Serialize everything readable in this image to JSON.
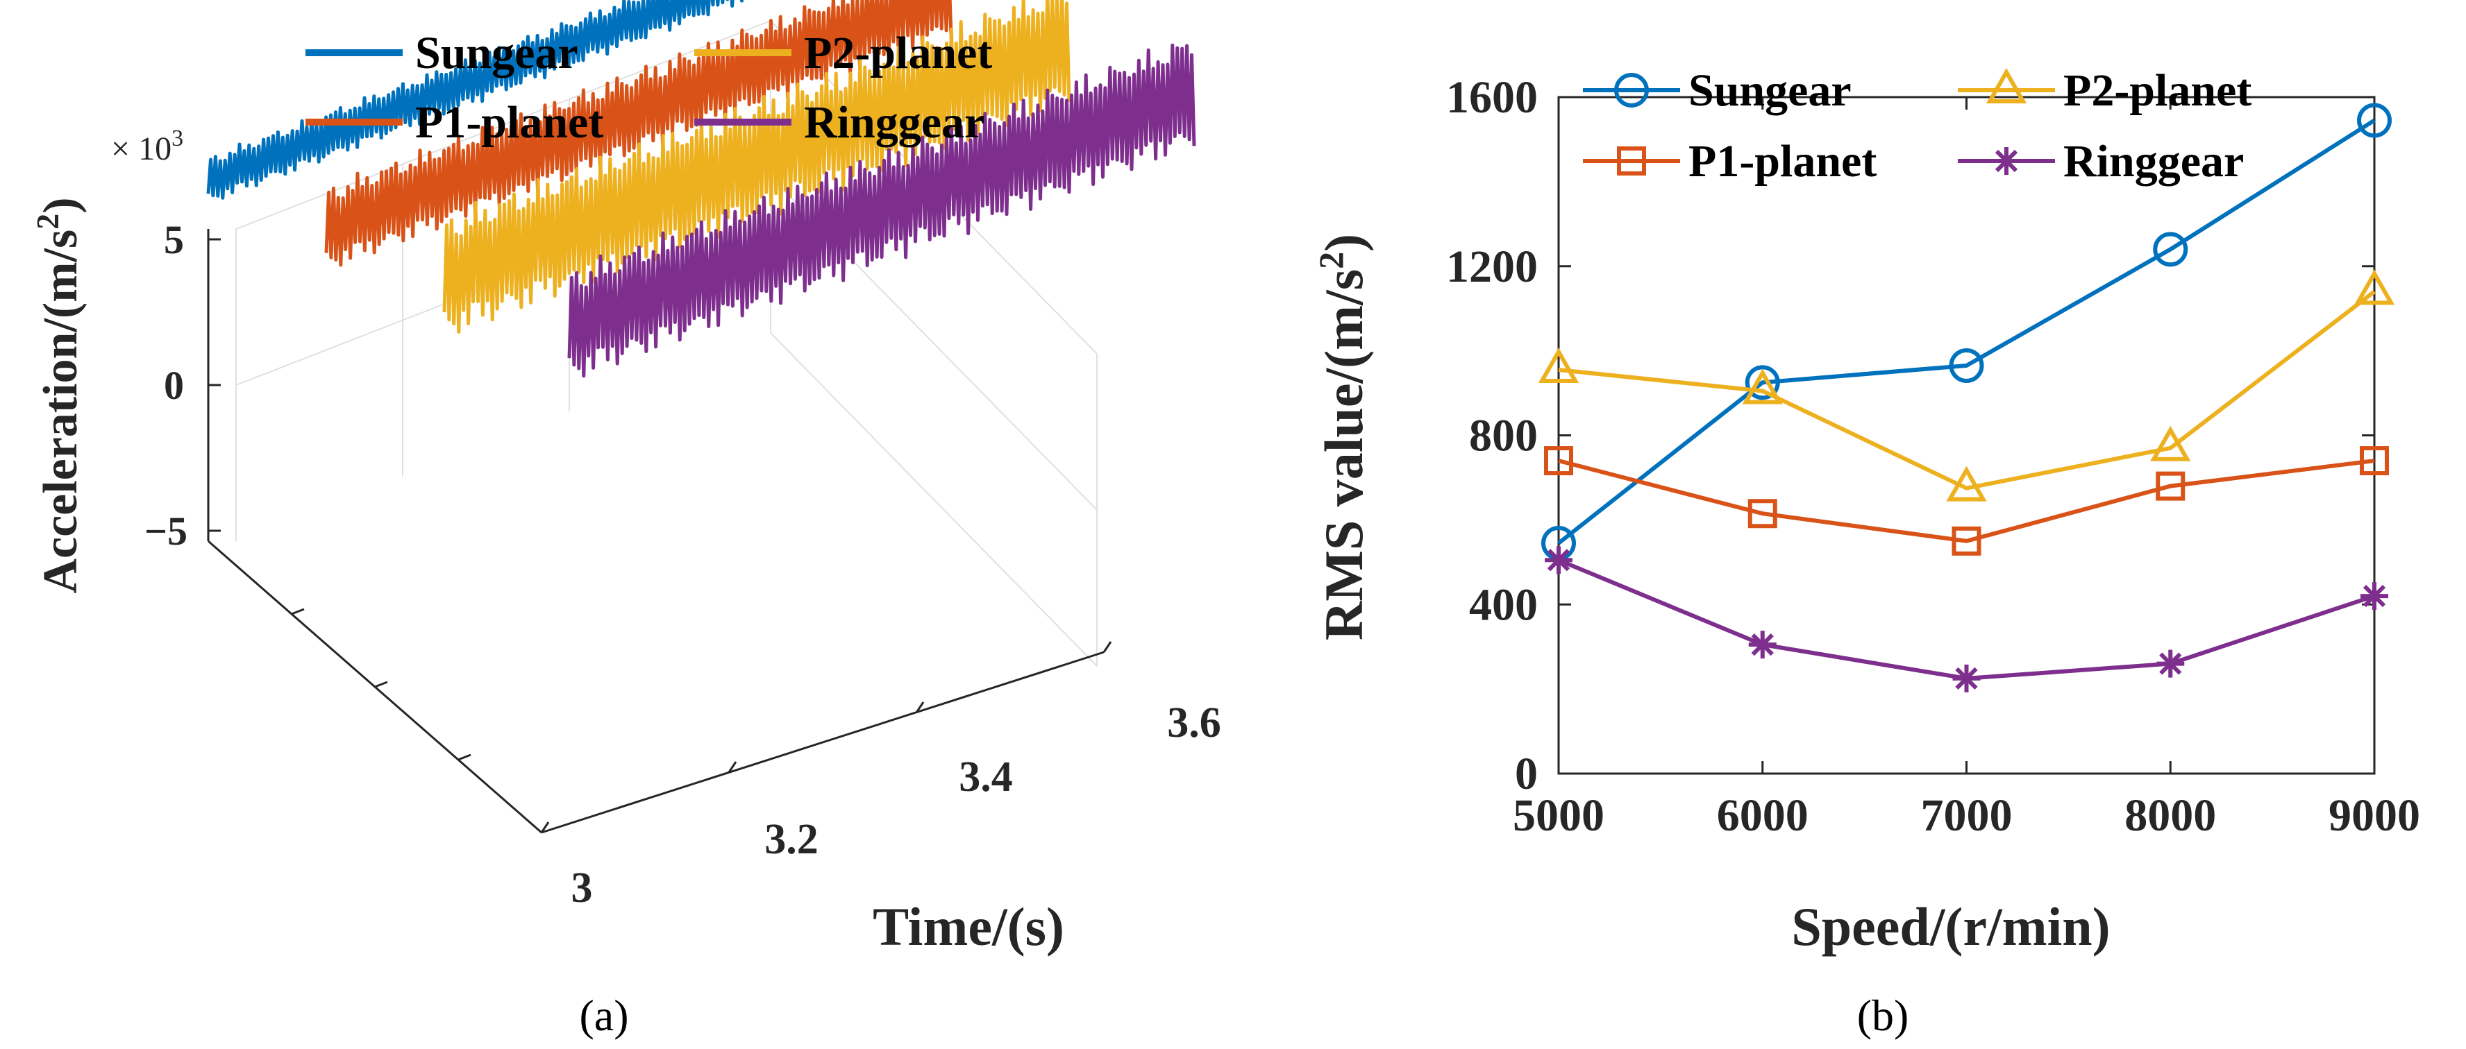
{
  "colors": {
    "sungear": "#0072BD",
    "p1_planet": "#D95319",
    "p2_planet": "#EDB120",
    "ringgear": "#7E2F8E",
    "axis": "#262626",
    "grid": "#d0d0d0"
  },
  "chart_data": [
    {
      "panel_label": "(a)",
      "type": "line",
      "projection": "3d",
      "xlabel": "Time/(s)",
      "ylabel_parts": [
        "Acceleration/(m/s",
        "2",
        ")"
      ],
      "z_scale_base": "× 10",
      "z_scale_exp": "3",
      "time_ticks": [
        "3",
        "3.2",
        "3.4",
        "3.6"
      ],
      "z_ticks": [
        "5",
        "0",
        "−5"
      ],
      "time_range": [
        3,
        3.6
      ],
      "z_range": [
        -5,
        5
      ],
      "legend": [
        "Sungear",
        "P2-planet",
        "P1-planet",
        "Ringgear"
      ],
      "series": [
        {
          "name": "Sungear",
          "color_key": "sungear",
          "amplitude": 0.5
        },
        {
          "name": "P1-planet",
          "color_key": "p1_planet",
          "amplitude": 0.9
        },
        {
          "name": "P2-planet",
          "color_key": "p2_planet",
          "amplitude": 1.3
        },
        {
          "name": "Ringgear",
          "color_key": "ringgear",
          "amplitude": 1.2
        }
      ]
    },
    {
      "panel_label": "(b)",
      "type": "line",
      "xlabel": "Speed/(r/min)",
      "ylabel_parts": [
        "RMS value/(m/s",
        "2",
        ")"
      ],
      "x": [
        5000,
        6000,
        7000,
        8000,
        9000
      ],
      "x_ticks": [
        "5000",
        "6000",
        "7000",
        "8000",
        "9000"
      ],
      "y_ticks": [
        "0",
        "400",
        "800",
        "1200",
        "1600"
      ],
      "xlim": [
        5000,
        9000
      ],
      "ylim": [
        0,
        1600
      ],
      "legend": [
        "Sungear",
        "P2-planet",
        "P1-planet",
        "Ringgear"
      ],
      "series": [
        {
          "name": "Sungear",
          "marker": "circle",
          "color_key": "sungear",
          "values": [
            545,
            925,
            965,
            1240,
            1545
          ]
        },
        {
          "name": "P2-planet",
          "marker": "triangle",
          "color_key": "p2_planet",
          "values": [
            955,
            905,
            675,
            770,
            1140
          ]
        },
        {
          "name": "P1-planet",
          "marker": "square",
          "color_key": "p1_planet",
          "values": [
            740,
            615,
            550,
            680,
            740
          ]
        },
        {
          "name": "Ringgear",
          "marker": "star",
          "color_key": "ringgear",
          "values": [
            505,
            305,
            225,
            260,
            420
          ]
        }
      ]
    }
  ]
}
